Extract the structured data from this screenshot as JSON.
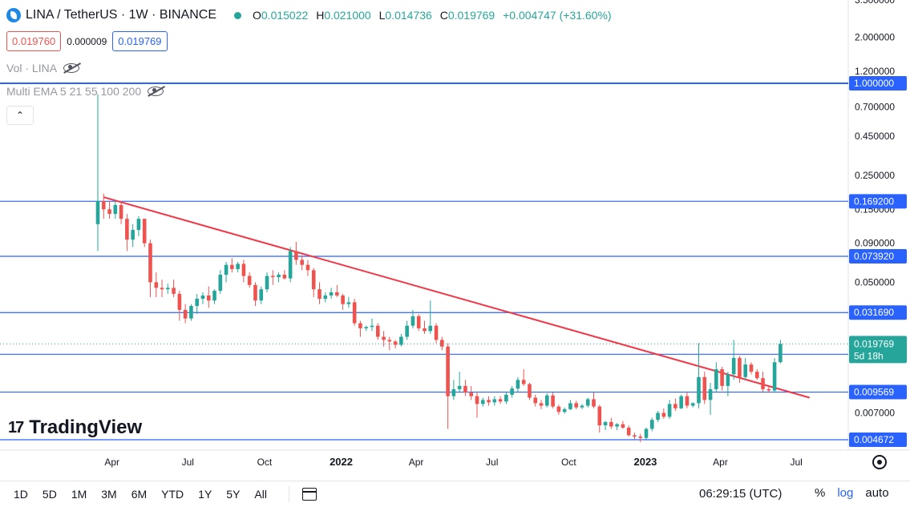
{
  "header": {
    "title": "LINA / TetherUS · 1W · BINANCE",
    "ohlc": {
      "open_label": "O",
      "open": "0.015022",
      "high_label": "H",
      "high": "0.021000",
      "low_label": "L",
      "low": "0.014736",
      "close_label": "C",
      "close": "0.019769",
      "change": "+0.004747 (+31.60%)"
    },
    "sell_price": "0.019760",
    "spread": "0.000009",
    "buy_price": "0.019769"
  },
  "indicators": {
    "volume": "Vol · LINA",
    "ema": "Multi EMA 5 21 55 100 200"
  },
  "watermark": "TradingView",
  "bottom_bar": {
    "ranges": [
      "1D",
      "5D",
      "1M",
      "3M",
      "6M",
      "YTD",
      "1Y",
      "5Y",
      "All"
    ],
    "clock": "06:29:15 (UTC)",
    "percent": "%",
    "log": "log",
    "auto": "auto"
  },
  "colors": {
    "up": "#26a69a",
    "down": "#ef5350",
    "levels": "#2962ff",
    "trendline": "#f23645",
    "accent": "#2962ff"
  },
  "chart_data": {
    "type": "candlestick",
    "scale": "log",
    "y_axis_ticks": [
      "3.500000",
      "2.000000",
      "1.200000",
      "0.700000",
      "0.450000",
      "0.250000",
      "0.150000",
      "0.090000",
      "0.050000",
      "0.007000"
    ],
    "x_axis_ticks": [
      "Apr",
      "Jul",
      "Oct",
      "2022",
      "Apr",
      "Jul",
      "Oct",
      "2023",
      "Apr",
      "Jul"
    ],
    "levels": [
      "1.000000",
      "0.169200",
      "0.073920",
      "0.031690",
      "0.016910",
      "0.009569",
      "0.004672"
    ],
    "last_price": "0.019769",
    "countdown": "5d 18h",
    "trendline": {
      "from": [
        "2021-03-22",
        0.18
      ],
      "to": [
        "2023-07-17",
        0.0088
      ]
    },
    "candles": [
      [
        "2021-03-15",
        0.12,
        0.85,
        0.08,
        0.17
      ],
      [
        "2021-03-22",
        0.17,
        0.19,
        0.13,
        0.15
      ],
      [
        "2021-03-29",
        0.15,
        0.17,
        0.13,
        0.14
      ],
      [
        "2021-04-05",
        0.14,
        0.17,
        0.13,
        0.16
      ],
      [
        "2021-04-12",
        0.16,
        0.17,
        0.12,
        0.13
      ],
      [
        "2021-04-19",
        0.13,
        0.14,
        0.08,
        0.095
      ],
      [
        "2021-04-26",
        0.095,
        0.12,
        0.085,
        0.11
      ],
      [
        "2021-05-03",
        0.11,
        0.135,
        0.1,
        0.13
      ],
      [
        "2021-05-10",
        0.13,
        0.13,
        0.085,
        0.09
      ],
      [
        "2021-05-17",
        0.09,
        0.095,
        0.04,
        0.05
      ],
      [
        "2021-05-24",
        0.05,
        0.058,
        0.04,
        0.046
      ],
      [
        "2021-05-31",
        0.046,
        0.052,
        0.04,
        0.045
      ],
      [
        "2021-06-07",
        0.045,
        0.049,
        0.042,
        0.046
      ],
      [
        "2021-06-14",
        0.046,
        0.052,
        0.04,
        0.042
      ],
      [
        "2021-06-21",
        0.042,
        0.044,
        0.028,
        0.033
      ],
      [
        "2021-06-28",
        0.033,
        0.036,
        0.027,
        0.029
      ],
      [
        "2021-07-05",
        0.029,
        0.036,
        0.028,
        0.035
      ],
      [
        "2021-07-12",
        0.035,
        0.042,
        0.031,
        0.039
      ],
      [
        "2021-07-19",
        0.039,
        0.043,
        0.036,
        0.041
      ],
      [
        "2021-07-26",
        0.041,
        0.047,
        0.034,
        0.038
      ],
      [
        "2021-08-02",
        0.038,
        0.045,
        0.036,
        0.044
      ],
      [
        "2021-08-09",
        0.044,
        0.06,
        0.042,
        0.056
      ],
      [
        "2021-08-16",
        0.056,
        0.068,
        0.05,
        0.065
      ],
      [
        "2021-08-23",
        0.065,
        0.072,
        0.058,
        0.061
      ],
      [
        "2021-08-30",
        0.061,
        0.068,
        0.058,
        0.066
      ],
      [
        "2021-09-06",
        0.066,
        0.07,
        0.05,
        0.055
      ],
      [
        "2021-09-13",
        0.055,
        0.058,
        0.046,
        0.048
      ],
      [
        "2021-09-20",
        0.048,
        0.05,
        0.035,
        0.038
      ],
      [
        "2021-09-27",
        0.038,
        0.047,
        0.036,
        0.045
      ],
      [
        "2021-10-04",
        0.045,
        0.058,
        0.043,
        0.055
      ],
      [
        "2021-10-11",
        0.055,
        0.06,
        0.048,
        0.054
      ],
      [
        "2021-10-18",
        0.054,
        0.058,
        0.05,
        0.056
      ],
      [
        "2021-10-25",
        0.056,
        0.06,
        0.052,
        0.053
      ],
      [
        "2021-11-01",
        0.053,
        0.085,
        0.05,
        0.08
      ],
      [
        "2021-11-08",
        0.08,
        0.092,
        0.065,
        0.07
      ],
      [
        "2021-11-15",
        0.07,
        0.075,
        0.06,
        0.065
      ],
      [
        "2021-11-22",
        0.065,
        0.07,
        0.055,
        0.06
      ],
      [
        "2021-11-29",
        0.06,
        0.062,
        0.04,
        0.045
      ],
      [
        "2021-12-06",
        0.045,
        0.05,
        0.036,
        0.039
      ],
      [
        "2021-12-13",
        0.039,
        0.043,
        0.037,
        0.041
      ],
      [
        "2021-12-20",
        0.041,
        0.046,
        0.039,
        0.043
      ],
      [
        "2021-12-27",
        0.043,
        0.048,
        0.04,
        0.041
      ],
      [
        "2022-01-03",
        0.041,
        0.042,
        0.033,
        0.036
      ],
      [
        "2022-01-10",
        0.036,
        0.04,
        0.034,
        0.037
      ],
      [
        "2022-01-17",
        0.037,
        0.039,
        0.026,
        0.027
      ],
      [
        "2022-01-24",
        0.027,
        0.028,
        0.022,
        0.025
      ],
      [
        "2022-01-31",
        0.025,
        0.026,
        0.024,
        0.0255
      ],
      [
        "2022-02-07",
        0.0255,
        0.029,
        0.024,
        0.026
      ],
      [
        "2022-02-14",
        0.026,
        0.027,
        0.021,
        0.022
      ],
      [
        "2022-02-21",
        0.022,
        0.024,
        0.019,
        0.021
      ],
      [
        "2022-02-28",
        0.021,
        0.022,
        0.018,
        0.0205
      ],
      [
        "2022-03-07",
        0.0205,
        0.021,
        0.0185,
        0.0195
      ],
      [
        "2022-03-14",
        0.0195,
        0.023,
        0.019,
        0.022
      ],
      [
        "2022-03-21",
        0.022,
        0.028,
        0.021,
        0.026
      ],
      [
        "2022-03-28",
        0.026,
        0.033,
        0.025,
        0.03
      ],
      [
        "2022-04-04",
        0.03,
        0.031,
        0.024,
        0.025
      ],
      [
        "2022-04-11",
        0.025,
        0.028,
        0.023,
        0.024
      ],
      [
        "2022-04-18",
        0.024,
        0.038,
        0.023,
        0.026
      ],
      [
        "2022-04-25",
        0.026,
        0.027,
        0.02,
        0.021
      ],
      [
        "2022-05-02",
        0.021,
        0.022,
        0.018,
        0.019
      ],
      [
        "2022-05-09",
        0.019,
        0.02,
        0.0055,
        0.009
      ],
      [
        "2022-05-16",
        0.009,
        0.0115,
        0.0085,
        0.01
      ],
      [
        "2022-05-23",
        0.01,
        0.013,
        0.0095,
        0.0105
      ],
      [
        "2022-05-30",
        0.0105,
        0.0115,
        0.009,
        0.0095
      ],
      [
        "2022-06-06",
        0.0095,
        0.0105,
        0.0085,
        0.009
      ],
      [
        "2022-06-13",
        0.009,
        0.0095,
        0.0065,
        0.008
      ],
      [
        "2022-06-20",
        0.008,
        0.0088,
        0.0077,
        0.0085
      ],
      [
        "2022-06-27",
        0.0085,
        0.009,
        0.0078,
        0.0082
      ],
      [
        "2022-07-04",
        0.0082,
        0.009,
        0.0078,
        0.0086
      ],
      [
        "2022-07-11",
        0.0086,
        0.009,
        0.008,
        0.0083
      ],
      [
        "2022-07-18",
        0.0083,
        0.0095,
        0.008,
        0.0092
      ],
      [
        "2022-07-25",
        0.0092,
        0.0105,
        0.0088,
        0.0101
      ],
      [
        "2022-08-01",
        0.0101,
        0.012,
        0.0095,
        0.0115
      ],
      [
        "2022-08-08",
        0.0115,
        0.0135,
        0.0105,
        0.0108
      ],
      [
        "2022-08-15",
        0.0108,
        0.011,
        0.0085,
        0.0088
      ],
      [
        "2022-08-22",
        0.0088,
        0.0092,
        0.0077,
        0.0081
      ],
      [
        "2022-08-29",
        0.0081,
        0.0085,
        0.0074,
        0.0078
      ],
      [
        "2022-09-05",
        0.0078,
        0.0094,
        0.0076,
        0.0091
      ],
      [
        "2022-09-12",
        0.0091,
        0.0095,
        0.0075,
        0.0077
      ],
      [
        "2022-09-19",
        0.0077,
        0.0079,
        0.0068,
        0.0071
      ],
      [
        "2022-09-26",
        0.0071,
        0.0076,
        0.0069,
        0.0074
      ],
      [
        "2022-10-03",
        0.0074,
        0.0085,
        0.0073,
        0.0081
      ],
      [
        "2022-10-10",
        0.0081,
        0.0084,
        0.0074,
        0.0076
      ],
      [
        "2022-10-17",
        0.0076,
        0.008,
        0.0074,
        0.0078
      ],
      [
        "2022-10-24",
        0.0078,
        0.0088,
        0.0076,
        0.0086
      ],
      [
        "2022-10-31",
        0.0086,
        0.0095,
        0.0075,
        0.0077
      ],
      [
        "2022-11-07",
        0.0077,
        0.0079,
        0.0052,
        0.0058
      ],
      [
        "2022-11-14",
        0.0058,
        0.0062,
        0.0054,
        0.0061
      ],
      [
        "2022-11-21",
        0.0061,
        0.0065,
        0.0055,
        0.0057
      ],
      [
        "2022-11-28",
        0.0057,
        0.006,
        0.0054,
        0.0059
      ],
      [
        "2022-12-05",
        0.0059,
        0.0062,
        0.0055,
        0.0056
      ],
      [
        "2022-12-12",
        0.0056,
        0.0058,
        0.0049,
        0.005
      ],
      [
        "2022-12-19",
        0.005,
        0.0052,
        0.0047,
        0.0049
      ],
      [
        "2022-12-26",
        0.0049,
        0.0051,
        0.0045,
        0.0048
      ],
      [
        "2023-01-02",
        0.0048,
        0.0056,
        0.0047,
        0.0055
      ],
      [
        "2023-01-09",
        0.0055,
        0.0065,
        0.0053,
        0.0063
      ],
      [
        "2023-01-16",
        0.0063,
        0.0072,
        0.0061,
        0.007
      ],
      [
        "2023-01-23",
        0.007,
        0.0075,
        0.0064,
        0.0066
      ],
      [
        "2023-01-30",
        0.0066,
        0.0085,
        0.0064,
        0.008
      ],
      [
        "2023-02-06",
        0.008,
        0.0087,
        0.0072,
        0.0075
      ],
      [
        "2023-02-13",
        0.0075,
        0.0092,
        0.0074,
        0.009
      ],
      [
        "2023-02-20",
        0.009,
        0.0095,
        0.0075,
        0.0078
      ],
      [
        "2023-02-27",
        0.0078,
        0.0082,
        0.0076,
        0.0081
      ],
      [
        "2023-03-06",
        0.0081,
        0.02,
        0.0075,
        0.012
      ],
      [
        "2023-03-13",
        0.012,
        0.013,
        0.008,
        0.0085
      ],
      [
        "2023-03-20",
        0.0085,
        0.011,
        0.0068,
        0.01
      ],
      [
        "2023-03-27",
        0.01,
        0.015,
        0.0095,
        0.0135
      ],
      [
        "2023-04-03",
        0.0135,
        0.014,
        0.0098,
        0.0105
      ],
      [
        "2023-04-10",
        0.0105,
        0.013,
        0.009,
        0.0125
      ],
      [
        "2023-04-17",
        0.0125,
        0.021,
        0.0115,
        0.016
      ],
      [
        "2023-04-24",
        0.016,
        0.0165,
        0.011,
        0.012
      ],
      [
        "2023-05-01",
        0.012,
        0.016,
        0.0115,
        0.0145
      ],
      [
        "2023-05-08",
        0.0145,
        0.015,
        0.0125,
        0.013
      ],
      [
        "2023-05-15",
        0.013,
        0.0135,
        0.0115,
        0.0118
      ],
      [
        "2023-05-22",
        0.0118,
        0.013,
        0.0095,
        0.01
      ],
      [
        "2023-05-29",
        0.01,
        0.0105,
        0.0095,
        0.0098
      ],
      [
        "2023-06-05",
        0.0098,
        0.016,
        0.0095,
        0.015
      ],
      [
        "2023-06-12",
        0.015022,
        0.021,
        0.014736,
        0.019769
      ]
    ]
  }
}
